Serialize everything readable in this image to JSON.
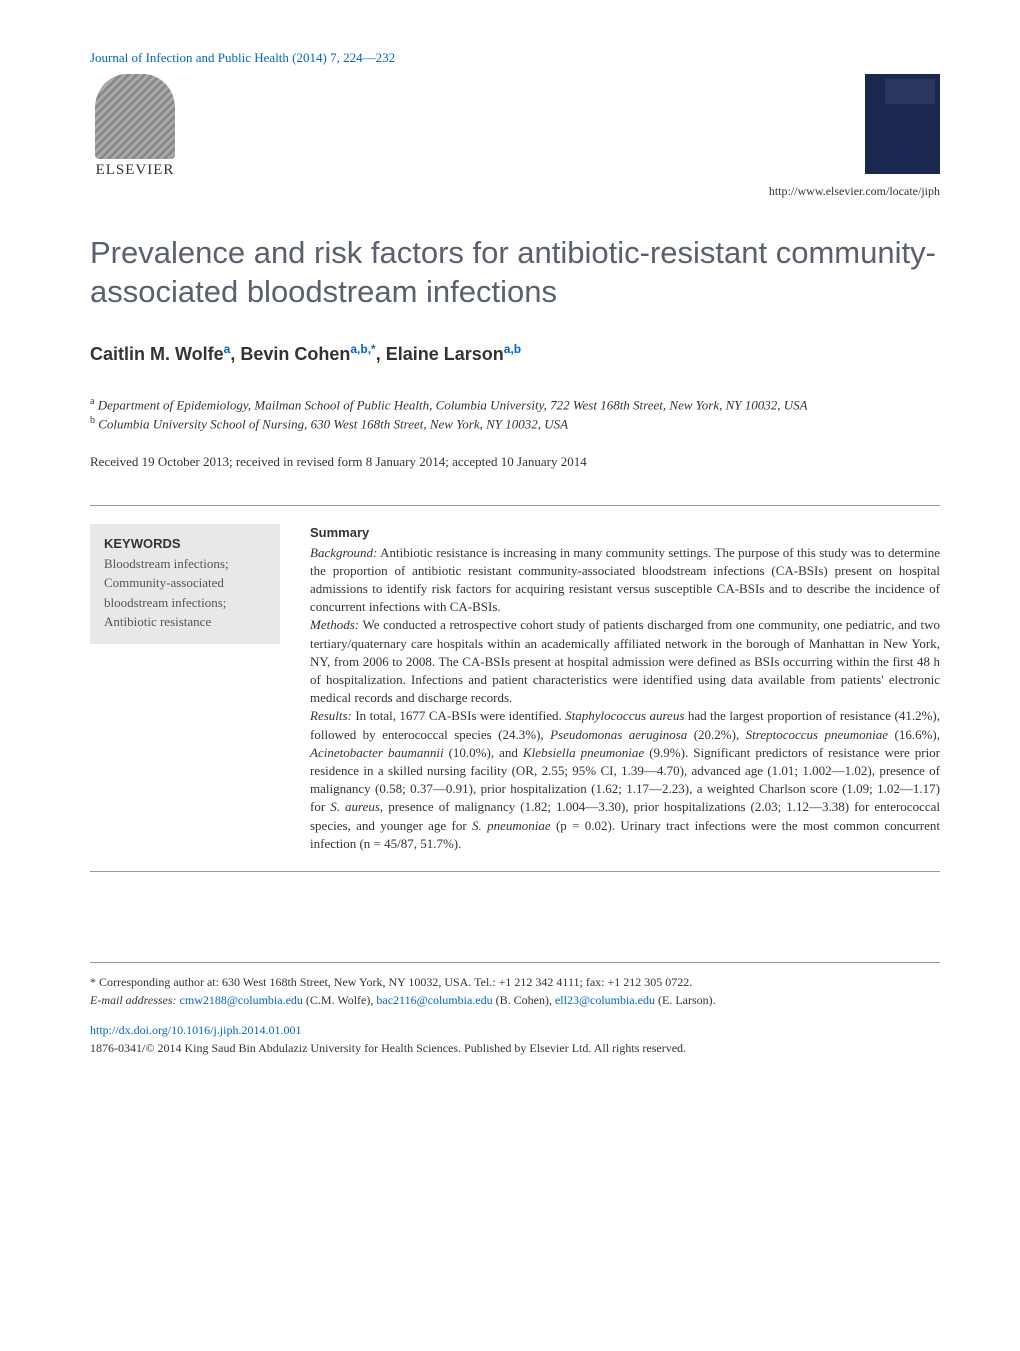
{
  "journal_reference": "Journal of Infection and Public Health (2014) 7, 224—232",
  "publisher": "ELSEVIER",
  "journal_url": "http://www.elsevier.com/locate/jiph",
  "title": "Prevalence and risk factors for antibiotic-resistant community-associated bloodstream infections",
  "authors_html": "Caitlin M. Wolfe<sup>a</sup>, Bevin Cohen<sup>a,b,*</sup>, Elaine Larson<sup>a,b</sup>",
  "affiliations": {
    "a": "Department of Epidemiology, Mailman School of Public Health, Columbia University, 722 West 168th Street, New York, NY 10032, USA",
    "b": "Columbia University School of Nursing, 630 West 168th Street, New York, NY 10032, USA"
  },
  "dates": "Received 19 October 2013; received in revised form 8 January 2014; accepted 10 January 2014",
  "keywords_heading": "KEYWORDS",
  "keywords": "Bloodstream infections;\nCommunity-associated bloodstream infections;\nAntibiotic resistance",
  "summary_heading": "Summary",
  "summary": {
    "background_label": "Background:",
    "background": "Antibiotic resistance is increasing in many community settings. The purpose of this study was to determine the proportion of antibiotic resistant community-associated bloodstream infections (CA-BSIs) present on hospital admissions to identify risk factors for acquiring resistant versus susceptible CA-BSIs and to describe the incidence of concurrent infections with CA-BSIs.",
    "methods_label": "Methods:",
    "methods": "We conducted a retrospective cohort study of patients discharged from one community, one pediatric, and two tertiary/quaternary care hospitals within an academically affiliated network in the borough of Manhattan in New York, NY, from 2006 to 2008. The CA-BSIs present at hospital admission were defined as BSIs occurring within the first 48 h of hospitalization. Infections and patient characteristics were identified using data available from patients' electronic medical records and discharge records.",
    "results_label": "Results:",
    "results_pre": "In total, 1677 CA-BSIs were identified. ",
    "results_italic1": "Staphylococcus aureus",
    "results_mid1": " had the largest proportion of resistance (41.2%), followed by enterococcal species (24.3%), ",
    "results_italic2": "Pseudomonas aeruginosa",
    "results_mid2": " (20.2%), ",
    "results_italic3": "Streptococcus pneumoniae",
    "results_mid3": " (16.6%), ",
    "results_italic4": "Acinetobacter baumannii",
    "results_mid4": " (10.0%), and ",
    "results_italic5": "Klebsiella pneumoniae",
    "results_mid5": " (9.9%). Significant predictors of resistance were prior residence in a skilled nursing facility (OR, 2.55; 95% CI, 1.39—4.70), advanced age (1.01; 1.002—1.02), presence of malignancy (0.58; 0.37—0.91), prior hospitalization (1.62; 1.17—2.23), a weighted Charlson score (1.09; 1.02—1.17) for ",
    "results_italic6": "S. aureus",
    "results_mid6": ", presence of malignancy (1.82; 1.004—3.30), prior hospitalizations (2.03; 1.12—3.38) for enterococcal species, and younger age for ",
    "results_italic7": "S. pneumoniae",
    "results_mid7": " (p = 0.02). Urinary tract infections were the most common concurrent infection (n = 45/87, 51.7%)."
  },
  "footer": {
    "corresponding_label": "* Corresponding author at: 630 West 168th Street, New York, NY 10032, USA. Tel.: +1 212 342 4111; fax: +1 212 305 0722.",
    "email_label": "E-mail addresses:",
    "emails": [
      {
        "addr": "cmw2188@columbia.edu",
        "name": "(C.M. Wolfe)"
      },
      {
        "addr": "bac2116@columbia.edu",
        "name": "(B. Cohen)"
      },
      {
        "addr": "ell23@columbia.edu",
        "name": "(E. Larson)"
      }
    ],
    "doi": "http://dx.doi.org/10.1016/j.jiph.2014.01.001",
    "copyright": "1876-0341/© 2014 King Saud Bin Abdulaziz University for Health Sciences. Published by Elsevier Ltd. All rights reserved."
  },
  "colors": {
    "link": "#0066cc",
    "title": "#5a6070",
    "text": "#333333",
    "keyword_bg": "#e8e8ea",
    "border": "#999999"
  }
}
